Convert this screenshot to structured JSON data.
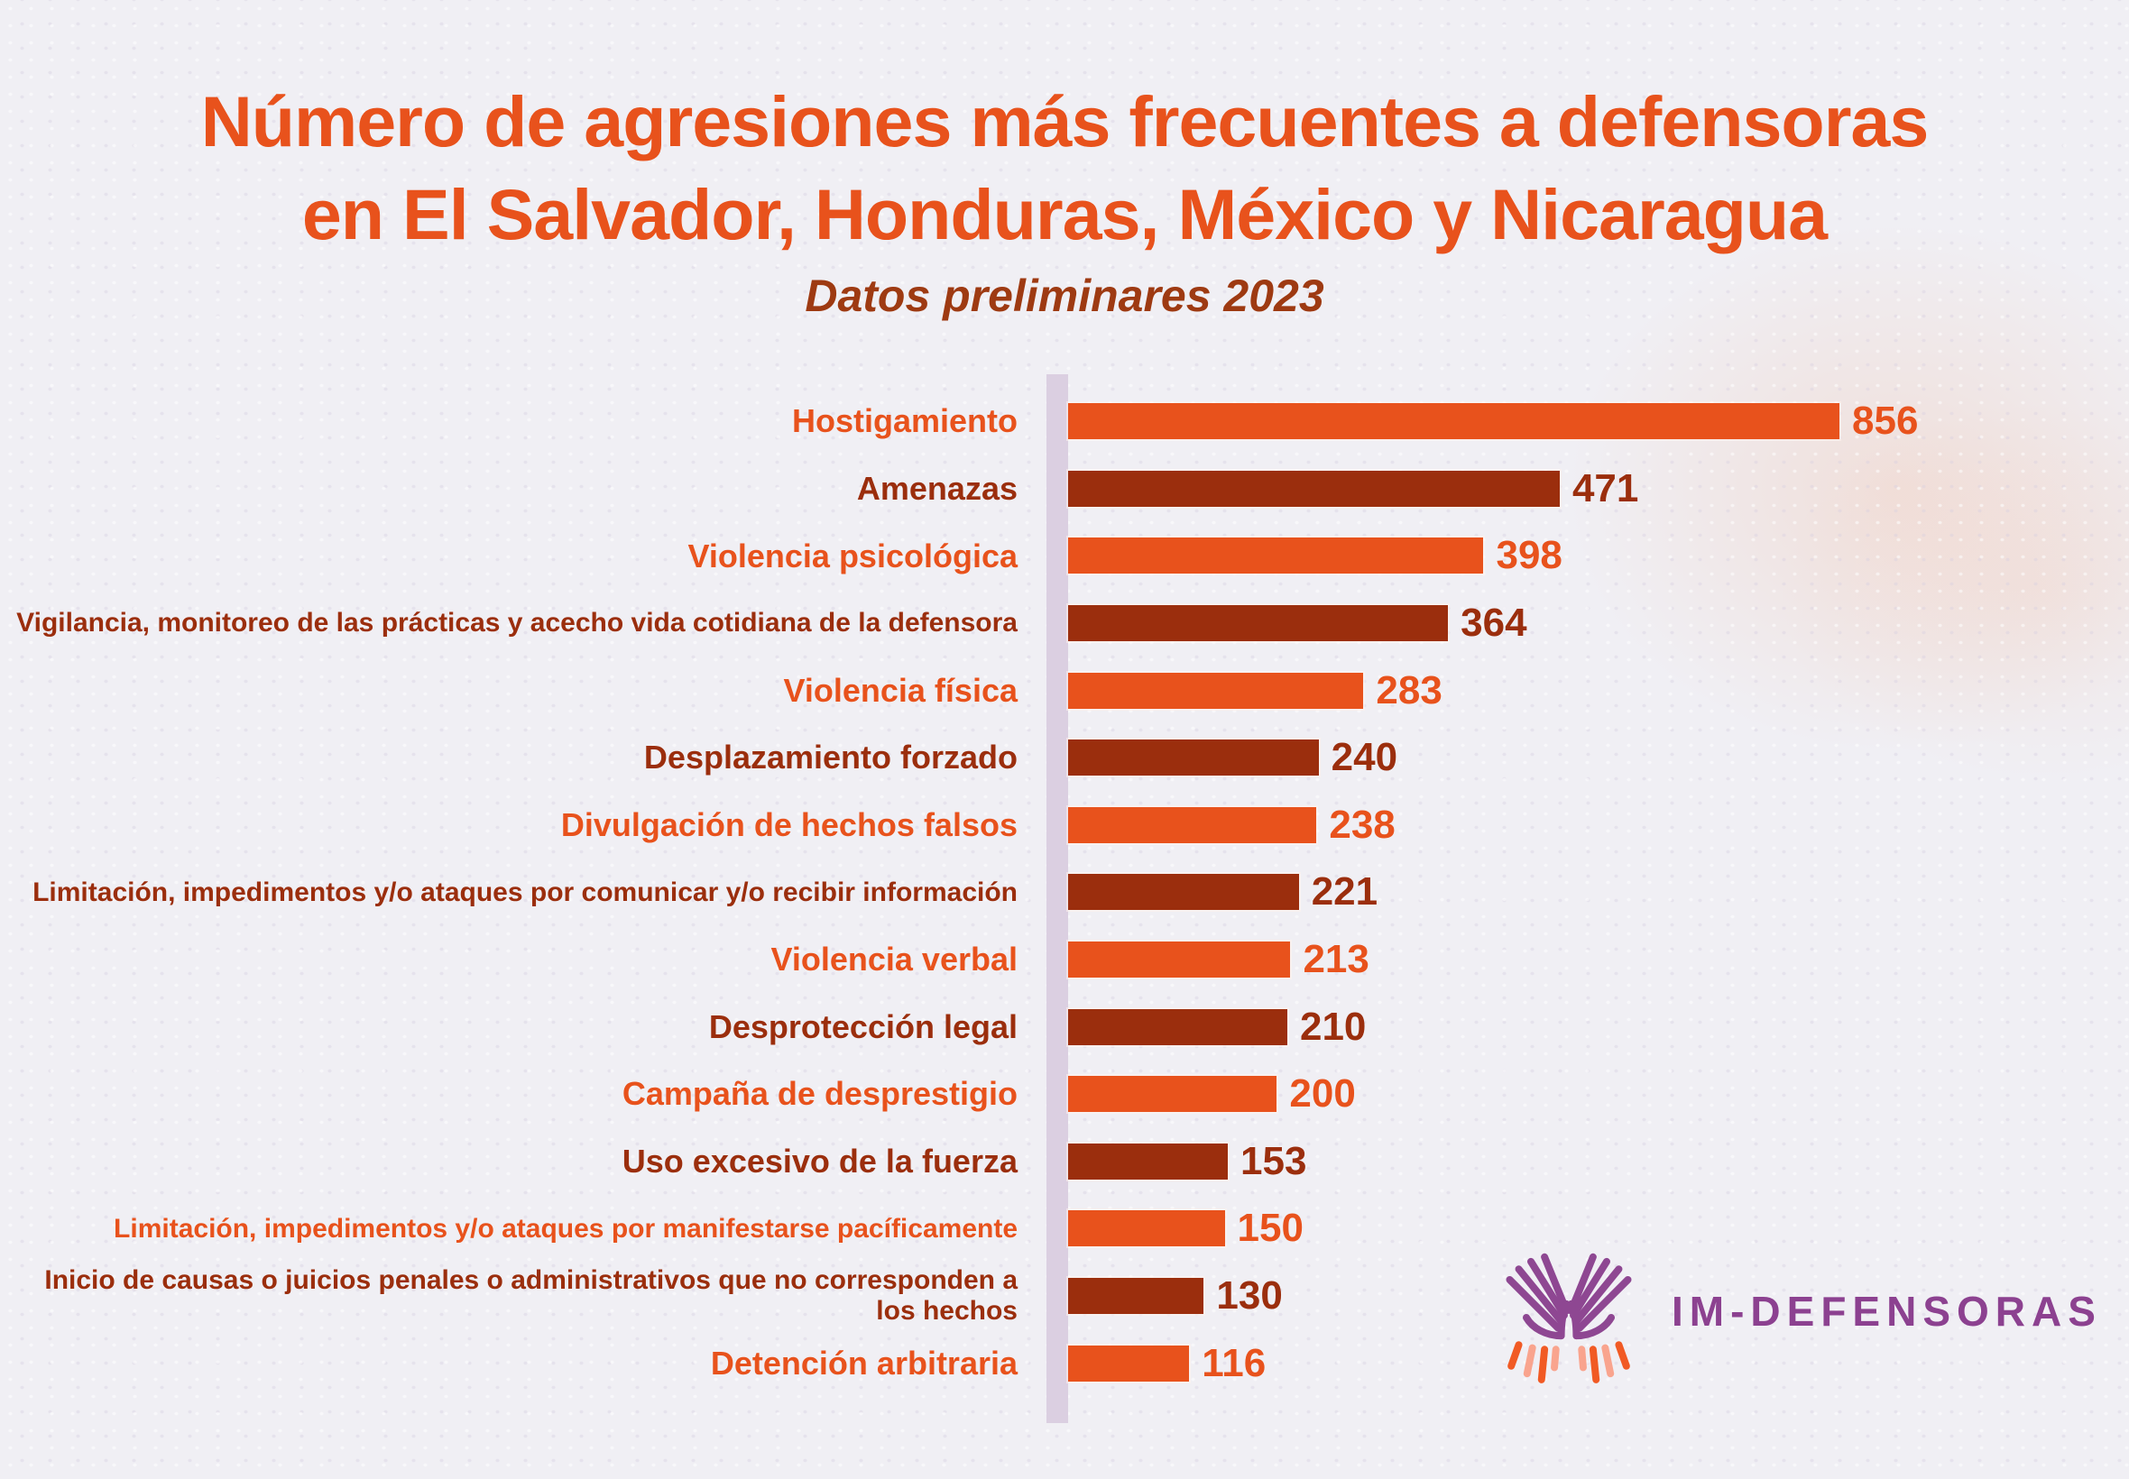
{
  "header": {
    "title_lines": [
      "Número de agresiones más frecuentes a defensoras",
      "en El Salvador, Honduras, México y Nicaragua"
    ],
    "subtitle": "Datos preliminares 2023"
  },
  "logo": {
    "text": "IM-DEFENSORAS"
  },
  "colors": {
    "orange": "#E8521C",
    "dark_red": "#9B2E0D",
    "title": "#E8521C",
    "subtitle": "#9E3A12",
    "axis_line": "#DBCFE1",
    "background": "#F0EFF4",
    "logo_purple": "#8C4190",
    "logo_hands_purple": "#8E4792",
    "logo_orange": "#F15A24",
    "logo_salmon": "#F9A48E"
  },
  "chart_data": {
    "type": "bar",
    "orientation": "horizontal",
    "title": "Número de agresiones más frecuentes a defensoras en El Salvador, Honduras, México y Nicaragua",
    "subtitle": "Datos preliminares 2023",
    "categories": [
      "Hostigamiento",
      "Amenazas",
      "Violencia psicológica",
      "Vigilancia, monitoreo de las prácticas y acecho vida cotidiana de la defensora",
      "Violencia física",
      "Desplazamiento forzado",
      "Divulgación de hechos falsos",
      "Limitación, impedimentos y/o ataques por comunicar y/o recibir información",
      "Violencia verbal",
      "Desprotección legal",
      "Campaña de desprestigio",
      "Uso excesivo de la fuerza",
      "Limitación, impedimentos y/o ataques por manifestarse pacíficamente",
      "Inicio de causas o juicios penales o administrativos que no corresponden a los hechos",
      "Detención arbitraria"
    ],
    "values": [
      856,
      471,
      398,
      364,
      283,
      240,
      238,
      221,
      213,
      210,
      200,
      153,
      150,
      130,
      116
    ],
    "bar_color_pattern": [
      "#E8521C",
      "#9B2E0D"
    ],
    "category_label_color_matches_bar": true,
    "value_labels_position": "end-of-bar",
    "legend": "none",
    "grid": false,
    "xlim": [
      0,
      900
    ]
  }
}
